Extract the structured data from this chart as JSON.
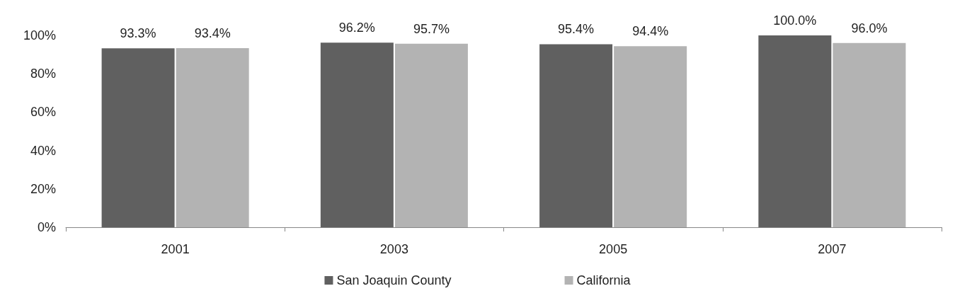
{
  "chart_data": {
    "type": "bar",
    "categories": [
      "2001",
      "2003",
      "2005",
      "2007"
    ],
    "series": [
      {
        "name": "San Joaquin County",
        "color": "#606060",
        "values": [
          93.3,
          96.2,
          95.4,
          100.0
        ],
        "value_labels": [
          "93.3%",
          "96.2%",
          "95.4%",
          "100.0%"
        ]
      },
      {
        "name": "California",
        "color": "#b3b3b3",
        "values": [
          93.4,
          95.7,
          94.4,
          96.0
        ],
        "value_labels": [
          "93.4%",
          "95.7%",
          "94.4%",
          "96.0%"
        ]
      }
    ],
    "ylim": [
      0,
      100
    ],
    "yticks": [
      {
        "value": 0,
        "label": "0%"
      },
      {
        "value": 20,
        "label": "20%"
      },
      {
        "value": 40,
        "label": "40%"
      },
      {
        "value": 60,
        "label": "60%"
      },
      {
        "value": 80,
        "label": "80%"
      },
      {
        "value": 100,
        "label": "100%"
      }
    ],
    "grid": false,
    "legend": "bottom"
  }
}
